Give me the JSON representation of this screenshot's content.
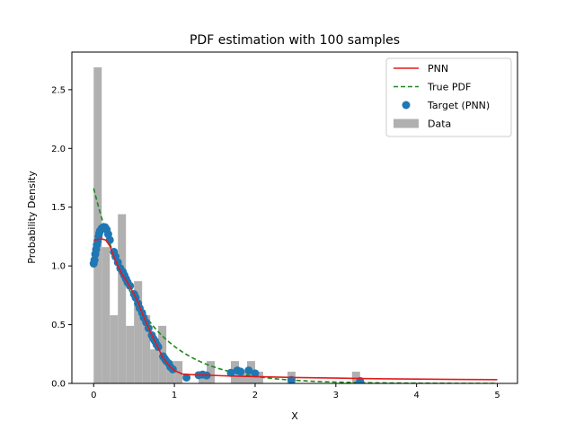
{
  "chart_data": {
    "type": "line",
    "title": "PDF estimation with 100 samples",
    "xlabel": "X",
    "ylabel": "Probability Density",
    "xlim": [
      -0.27,
      5.25
    ],
    "ylim": [
      0,
      2.82
    ],
    "xticks": [
      0,
      1,
      2,
      3,
      4,
      5
    ],
    "yticks": [
      0.0,
      0.5,
      1.0,
      1.5,
      2.0,
      2.5
    ],
    "legend_position": "upper-right",
    "grid": false,
    "colors": {
      "pnn": "#e41a1c",
      "true_pdf": "#1a8a1a",
      "target": "#1f77b4",
      "data": "#b0b0b0"
    },
    "legend": [
      {
        "label": "PNN",
        "kind": "line"
      },
      {
        "label": "True PDF",
        "kind": "dashed"
      },
      {
        "label": "Target (PNN)",
        "kind": "scatter"
      },
      {
        "label": "Data",
        "kind": "bar"
      }
    ],
    "histogram": {
      "name": "Data",
      "bin_width": 0.1,
      "bins": [
        {
          "x0": 0.0,
          "y": 2.69
        },
        {
          "x0": 0.1,
          "y": 1.16
        },
        {
          "x0": 0.2,
          "y": 0.58
        },
        {
          "x0": 0.3,
          "y": 1.44
        },
        {
          "x0": 0.4,
          "y": 0.49
        },
        {
          "x0": 0.5,
          "y": 0.87
        },
        {
          "x0": 0.6,
          "y": 0.58
        },
        {
          "x0": 0.7,
          "y": 0.29
        },
        {
          "x0": 0.8,
          "y": 0.49
        },
        {
          "x0": 0.9,
          "y": 0.19
        },
        {
          "x0": 1.0,
          "y": 0.19
        },
        {
          "x0": 1.3,
          "y": 0.1
        },
        {
          "x0": 1.4,
          "y": 0.19
        },
        {
          "x0": 1.7,
          "y": 0.19
        },
        {
          "x0": 1.8,
          "y": 0.1
        },
        {
          "x0": 1.9,
          "y": 0.19
        },
        {
          "x0": 2.0,
          "y": 0.1
        },
        {
          "x0": 2.4,
          "y": 0.1
        },
        {
          "x0": 3.2,
          "y": 0.1
        }
      ]
    },
    "series": [
      {
        "name": "PNN",
        "style": "solid",
        "points": [
          [
            0.0,
            1.22
          ],
          [
            0.1,
            1.23
          ],
          [
            0.15,
            1.22
          ],
          [
            0.2,
            1.17
          ],
          [
            0.25,
            1.08
          ],
          [
            0.3,
            1.0
          ],
          [
            0.35,
            0.93
          ],
          [
            0.4,
            0.88
          ],
          [
            0.45,
            0.82
          ],
          [
            0.5,
            0.76
          ],
          [
            0.55,
            0.69
          ],
          [
            0.6,
            0.6
          ],
          [
            0.65,
            0.52
          ],
          [
            0.7,
            0.44
          ],
          [
            0.75,
            0.37
          ],
          [
            0.8,
            0.3
          ],
          [
            0.85,
            0.23
          ],
          [
            0.9,
            0.18
          ],
          [
            0.95,
            0.14
          ],
          [
            1.0,
            0.11
          ],
          [
            1.1,
            0.08
          ],
          [
            1.2,
            0.075
          ],
          [
            1.4,
            0.07
          ],
          [
            1.6,
            0.065
          ],
          [
            2.0,
            0.058
          ],
          [
            2.5,
            0.05
          ],
          [
            3.0,
            0.045
          ],
          [
            3.5,
            0.04
          ],
          [
            4.0,
            0.037
          ],
          [
            4.5,
            0.034
          ],
          [
            5.0,
            0.032
          ]
        ]
      },
      {
        "name": "True PDF",
        "style": "dashed",
        "function": "1.66*exp(-1.66*x)",
        "x_range": [
          0,
          5
        ]
      },
      {
        "name": "Target (PNN)",
        "style": "scatter",
        "points": [
          [
            0.0,
            1.02
          ],
          [
            0.01,
            1.05
          ],
          [
            0.02,
            1.1
          ],
          [
            0.03,
            1.14
          ],
          [
            0.04,
            1.18
          ],
          [
            0.05,
            1.21
          ],
          [
            0.06,
            1.25
          ],
          [
            0.07,
            1.28
          ],
          [
            0.08,
            1.3
          ],
          [
            0.1,
            1.32
          ],
          [
            0.12,
            1.33
          ],
          [
            0.14,
            1.33
          ],
          [
            0.16,
            1.31
          ],
          [
            0.18,
            1.27
          ],
          [
            0.2,
            1.22
          ],
          [
            0.25,
            1.12
          ],
          [
            0.27,
            1.08
          ],
          [
            0.3,
            1.03
          ],
          [
            0.33,
            0.98
          ],
          [
            0.36,
            0.95
          ],
          [
            0.38,
            0.92
          ],
          [
            0.4,
            0.89
          ],
          [
            0.42,
            0.86
          ],
          [
            0.45,
            0.83
          ],
          [
            0.5,
            0.76
          ],
          [
            0.52,
            0.73
          ],
          [
            0.55,
            0.68
          ],
          [
            0.57,
            0.64
          ],
          [
            0.6,
            0.6
          ],
          [
            0.62,
            0.56
          ],
          [
            0.65,
            0.52
          ],
          [
            0.68,
            0.47
          ],
          [
            0.72,
            0.41
          ],
          [
            0.74,
            0.38
          ],
          [
            0.76,
            0.36
          ],
          [
            0.78,
            0.33
          ],
          [
            0.8,
            0.31
          ],
          [
            0.86,
            0.23
          ],
          [
            0.88,
            0.21
          ],
          [
            0.9,
            0.19
          ],
          [
            0.93,
            0.17
          ],
          [
            0.95,
            0.14
          ],
          [
            0.98,
            0.12
          ],
          [
            1.15,
            0.05
          ],
          [
            1.3,
            0.07
          ],
          [
            1.35,
            0.075
          ],
          [
            1.4,
            0.068
          ],
          [
            1.7,
            0.09
          ],
          [
            1.78,
            0.11
          ],
          [
            1.82,
            0.1
          ],
          [
            1.92,
            0.11
          ],
          [
            2.0,
            0.085
          ],
          [
            2.45,
            0.03
          ],
          [
            3.3,
            0.02
          ]
        ]
      }
    ]
  }
}
